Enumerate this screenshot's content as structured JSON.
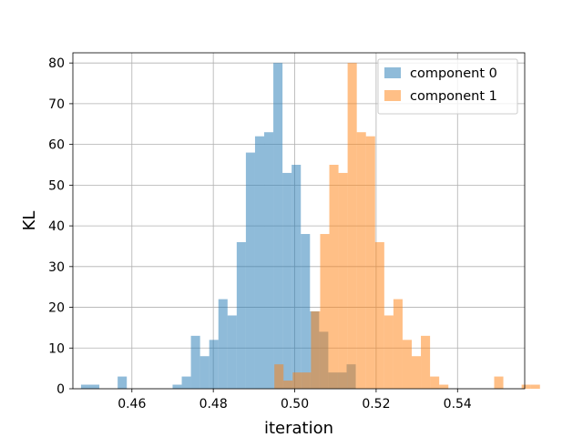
{
  "chart_data": {
    "type": "histogram",
    "xlabel": "iteration",
    "ylabel": "KL",
    "xlim": [
      0.4455,
      0.5565
    ],
    "ylim": [
      0,
      82.5
    ],
    "xticks": [
      0.46,
      0.48,
      0.5,
      0.52,
      0.54
    ],
    "xtick_labels": [
      "0.46",
      "0.48",
      "0.50",
      "0.52",
      "0.54"
    ],
    "yticks": [
      0,
      10,
      20,
      30,
      40,
      50,
      60,
      70,
      80
    ],
    "ytick_labels": [
      "0",
      "10",
      "20",
      "30",
      "40",
      "50",
      "60",
      "70",
      "80"
    ],
    "grid": true,
    "legend_position": "top-right",
    "bin_width": 0.00225,
    "series": [
      {
        "name": "component 0",
        "color": "#1f77b4",
        "alpha": 0.5,
        "bin_start": 0.4475,
        "counts": [
          1,
          1,
          0,
          0,
          3,
          0,
          0,
          0,
          0,
          0,
          1,
          3,
          13,
          8,
          12,
          22,
          18,
          36,
          58,
          62,
          63,
          80,
          53,
          55,
          38,
          19,
          14,
          4,
          4,
          6
        ]
      },
      {
        "name": "component 1",
        "color": "#ff7f0e",
        "alpha": 0.5,
        "bin_start": 0.495,
        "counts": [
          6,
          2,
          4,
          4,
          19,
          38,
          55,
          53,
          80,
          63,
          62,
          36,
          18,
          22,
          12,
          8,
          13,
          3,
          1,
          0,
          0,
          0,
          0,
          0,
          3,
          0,
          0,
          1,
          1
        ]
      }
    ]
  }
}
